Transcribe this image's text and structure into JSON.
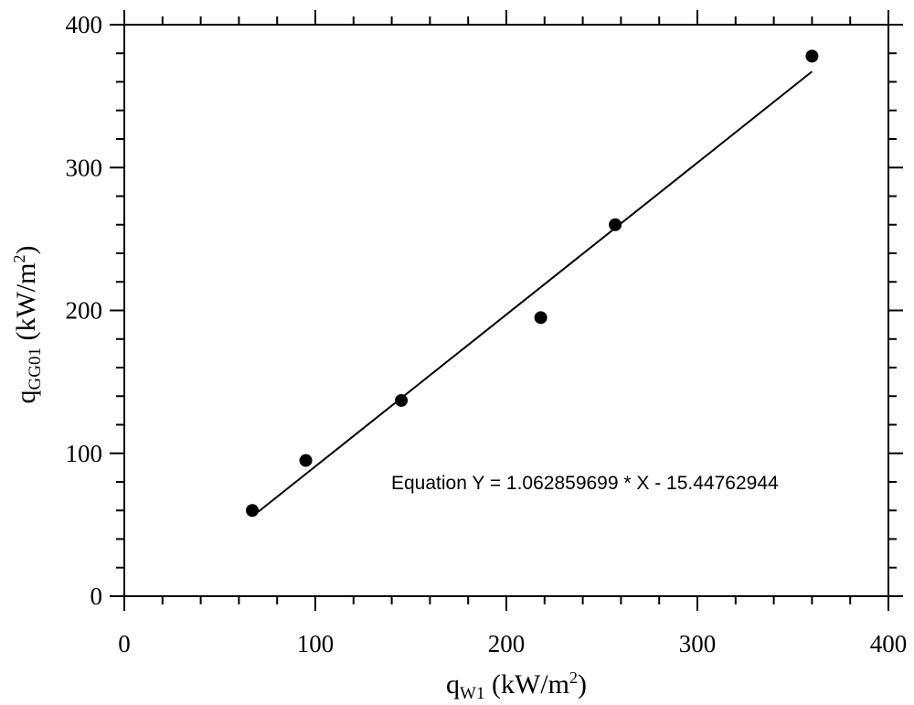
{
  "chart_data": {
    "type": "scatter",
    "x_axis": {
      "label_main": "q",
      "label_sub": "W1",
      "label_unit": " (kW/m",
      "label_sup": "2",
      "label_close": ")",
      "range": [
        0,
        400
      ],
      "ticks": [
        0,
        100,
        200,
        300,
        400
      ],
      "tick_labels": [
        "0",
        "100",
        "200",
        "300",
        "400"
      ],
      "minor_step": 20
    },
    "y_axis": {
      "label_main": "q",
      "label_sub": "GG01",
      "label_unit": " (kW/m",
      "label_sup": "2",
      "label_close": ")",
      "range": [
        0,
        400
      ],
      "ticks": [
        0,
        100,
        200,
        300,
        400
      ],
      "tick_labels": [
        "0",
        "100",
        "200",
        "300",
        "400"
      ],
      "minor_step": 20
    },
    "points": [
      {
        "x": 67,
        "y": 60
      },
      {
        "x": 95,
        "y": 95
      },
      {
        "x": 145,
        "y": 137
      },
      {
        "x": 218,
        "y": 195
      },
      {
        "x": 257,
        "y": 260
      },
      {
        "x": 360,
        "y": 378
      }
    ],
    "fit_line": {
      "slope": 1.062859699,
      "intercept": -15.44762944,
      "x_start": 70,
      "x_end": 360
    },
    "equation_text": "Equation Y = 1.062859699 * X - 15.44762944",
    "grid": false,
    "legend": "none",
    "colors": {
      "points": "#000000",
      "line": "#000000",
      "axes": "#000000"
    }
  }
}
